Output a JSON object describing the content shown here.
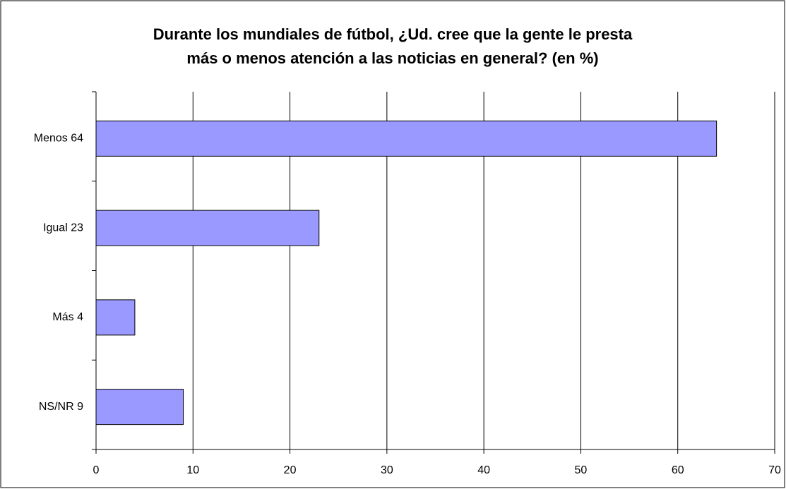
{
  "chart_data": {
    "type": "hbar",
    "title": [
      "Durante los mundiales de fútbol, ¿Ud. cree que la gente le presta",
      "más o menos atención a las noticias en general? (en %)"
    ],
    "categories": [
      "Menos 64",
      "Igual 23",
      "Más 4",
      "NS/NR 9"
    ],
    "values": [
      64,
      23,
      4,
      9
    ],
    "color": "#9999ff",
    "xlim": [
      0,
      70
    ],
    "xticks": [
      0,
      10,
      20,
      30,
      40,
      50,
      60,
      70
    ],
    "grid": true
  }
}
